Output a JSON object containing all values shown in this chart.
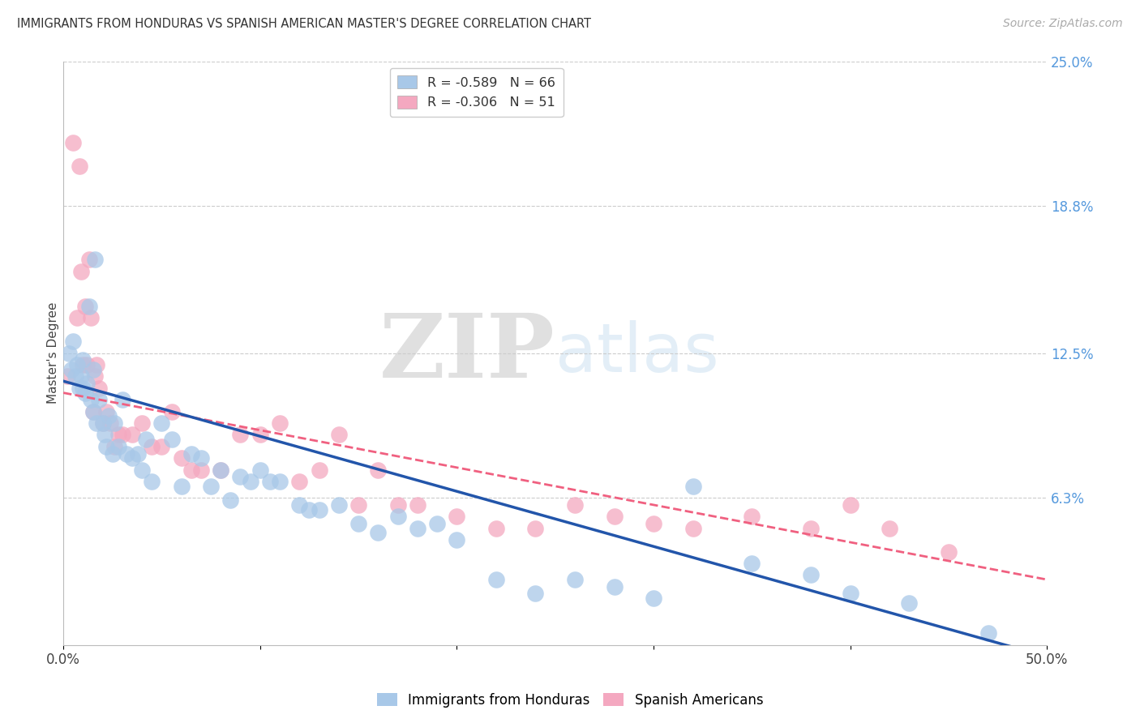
{
  "title": "IMMIGRANTS FROM HONDURAS VS SPANISH AMERICAN MASTER'S DEGREE CORRELATION CHART",
  "source": "Source: ZipAtlas.com",
  "ylabel": "Master's Degree",
  "series1_label": "Immigrants from Honduras",
  "series2_label": "Spanish Americans",
  "series1_color": "#a8c8e8",
  "series2_color": "#f4a8c0",
  "series1_line_color": "#2255aa",
  "series2_line_color": "#f06080",
  "r1": -0.589,
  "n1": 66,
  "r2": -0.306,
  "n2": 51,
  "xlim": [
    0.0,
    50.0
  ],
  "ylim": [
    0.0,
    25.0
  ],
  "right_yticks": [
    6.3,
    12.5,
    18.8,
    25.0
  ],
  "right_ytick_labels": [
    "6.3%",
    "12.5%",
    "18.8%",
    "25.0%"
  ],
  "blue_x": [
    0.3,
    0.4,
    0.5,
    0.6,
    0.7,
    0.8,
    0.9,
    1.0,
    1.0,
    1.1,
    1.2,
    1.3,
    1.4,
    1.5,
    1.5,
    1.6,
    1.7,
    1.8,
    2.0,
    2.1,
    2.2,
    2.3,
    2.5,
    2.6,
    2.8,
    3.0,
    3.2,
    3.5,
    3.8,
    4.0,
    4.2,
    4.5,
    5.0,
    5.5,
    6.0,
    6.5,
    7.0,
    7.5,
    8.0,
    8.5,
    9.0,
    9.5,
    10.0,
    10.5,
    11.0,
    12.0,
    12.5,
    13.0,
    14.0,
    15.0,
    16.0,
    17.0,
    18.0,
    19.0,
    20.0,
    22.0,
    24.0,
    26.0,
    28.0,
    30.0,
    32.0,
    35.0,
    38.0,
    40.0,
    43.0,
    47.0
  ],
  "blue_y": [
    12.5,
    11.8,
    13.0,
    11.5,
    12.0,
    11.0,
    11.5,
    12.2,
    11.0,
    10.8,
    11.2,
    14.5,
    10.5,
    11.8,
    10.0,
    16.5,
    9.5,
    10.5,
    9.5,
    9.0,
    8.5,
    9.8,
    8.2,
    9.5,
    8.5,
    10.5,
    8.2,
    8.0,
    8.2,
    7.5,
    8.8,
    7.0,
    9.5,
    8.8,
    6.8,
    8.2,
    8.0,
    6.8,
    7.5,
    6.2,
    7.2,
    7.0,
    7.5,
    7.0,
    7.0,
    6.0,
    5.8,
    5.8,
    6.0,
    5.2,
    4.8,
    5.5,
    5.0,
    5.2,
    4.5,
    2.8,
    2.2,
    2.8,
    2.5,
    2.0,
    6.8,
    3.5,
    3.0,
    2.2,
    1.8,
    0.5
  ],
  "pink_x": [
    0.2,
    0.5,
    0.7,
    0.8,
    0.9,
    1.0,
    1.1,
    1.2,
    1.3,
    1.4,
    1.5,
    1.6,
    1.7,
    1.8,
    2.0,
    2.2,
    2.4,
    2.6,
    2.8,
    3.0,
    3.5,
    4.0,
    4.5,
    5.0,
    5.5,
    6.0,
    6.5,
    7.0,
    8.0,
    9.0,
    10.0,
    11.0,
    12.0,
    13.0,
    14.0,
    15.0,
    16.0,
    17.0,
    18.0,
    20.0,
    22.0,
    24.0,
    26.0,
    28.0,
    30.0,
    32.0,
    35.0,
    38.0,
    40.0,
    42.0,
    45.0
  ],
  "pink_y": [
    11.5,
    21.5,
    14.0,
    20.5,
    16.0,
    12.0,
    14.5,
    12.0,
    16.5,
    14.0,
    10.0,
    11.5,
    12.0,
    11.0,
    9.5,
    10.0,
    9.5,
    8.5,
    9.0,
    9.0,
    9.0,
    9.5,
    8.5,
    8.5,
    10.0,
    8.0,
    7.5,
    7.5,
    7.5,
    9.0,
    9.0,
    9.5,
    7.0,
    7.5,
    9.0,
    6.0,
    7.5,
    6.0,
    6.0,
    5.5,
    5.0,
    5.0,
    6.0,
    5.5,
    5.2,
    5.0,
    5.5,
    5.0,
    6.0,
    5.0,
    4.0
  ]
}
